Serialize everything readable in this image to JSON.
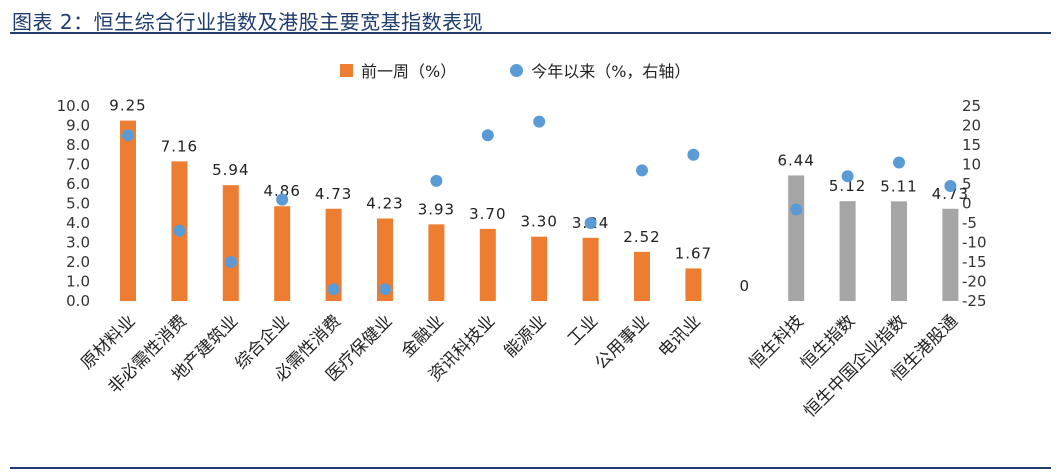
{
  "title": "图表 2：恒生综合行业指数及港股主要宽基指数表现",
  "colors": {
    "bar_sector": "#ed7d31",
    "bar_index": "#a5a5a5",
    "dot": "#5b9bd5",
    "title": "#1f3c6e"
  },
  "legend": {
    "bar_label": "前一周（%）",
    "dot_label": "今年以来（%，右轴）"
  },
  "chart_data": {
    "type": "bar",
    "categories": [
      "原材料业",
      "非必需性消费",
      "地产建筑业",
      "综合企业",
      "必需性消费",
      "医疗保健业",
      "金融业",
      "资讯科技业",
      "能源业",
      "工业",
      "公用事业",
      "电讯业",
      "",
      "恒生科技",
      "恒生指数",
      "恒生中国企业指数",
      "恒生港股通"
    ],
    "series": [
      {
        "name": "前一周（%）",
        "type": "bar",
        "axis": "left",
        "values": [
          9.25,
          7.16,
          5.94,
          4.86,
          4.73,
          4.23,
          3.93,
          3.7,
          3.3,
          3.24,
          2.52,
          1.67,
          0,
          6.44,
          5.12,
          5.11,
          4.73
        ],
        "labels": [
          "9.25",
          "7.16",
          "5.94",
          "4.86",
          "4.73",
          "4.23",
          "3.93",
          "3.70",
          "3.30",
          "3.24",
          "2.52",
          "1.67",
          "0",
          "6.44",
          "5.12",
          "5.11",
          "4.73"
        ],
        "color_groups": [
          "sector",
          "sector",
          "sector",
          "sector",
          "sector",
          "sector",
          "sector",
          "sector",
          "sector",
          "sector",
          "sector",
          "sector",
          "none",
          "index",
          "index",
          "index",
          "index"
        ]
      },
      {
        "name": "今年以来（%，右轴）",
        "type": "scatter",
        "axis": "right",
        "values": [
          17.5,
          -7,
          -15,
          1,
          -22,
          -22,
          5.8,
          17.5,
          21,
          -5,
          8.5,
          12.5,
          null,
          -1.5,
          7,
          10.5,
          4.5
        ]
      }
    ],
    "y_left": {
      "lim": [
        0,
        10
      ],
      "ticks": [
        "10.0",
        "9.0",
        "8.0",
        "7.0",
        "6.0",
        "5.0",
        "4.0",
        "3.0",
        "2.0",
        "1.0",
        "0.0"
      ]
    },
    "y_right": {
      "lim": [
        -25,
        25
      ],
      "ticks": [
        "25",
        "20",
        "15",
        "10",
        "5",
        "0",
        "-5",
        "-10",
        "-15",
        "-20",
        "-25"
      ]
    },
    "grid": false,
    "legend_position": "top"
  }
}
